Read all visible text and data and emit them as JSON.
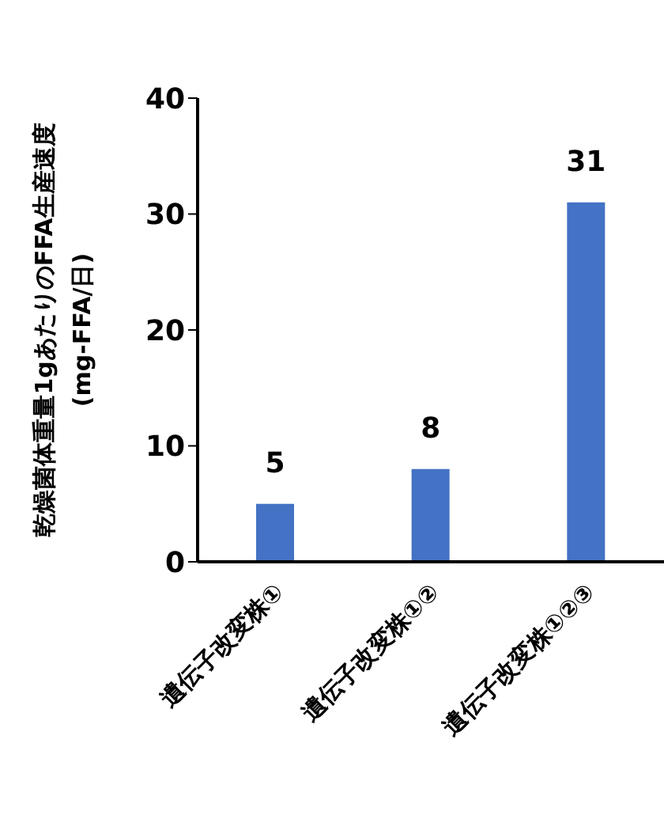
{
  "chart_data": {
    "type": "bar",
    "ylabel": "乾燥菌体重量1gあたりのFFA生産速度\n(mg-FFA/日)",
    "categories": [
      "遺伝子改変株①",
      "遺伝子改変株①②",
      "遺伝子改変株①②③"
    ],
    "values": [
      5,
      8,
      31
    ],
    "color": "#4472c4",
    "ylim": [
      0,
      40
    ],
    "yticks": [
      0,
      10,
      20,
      30,
      40
    ],
    "data_labels": true
  }
}
